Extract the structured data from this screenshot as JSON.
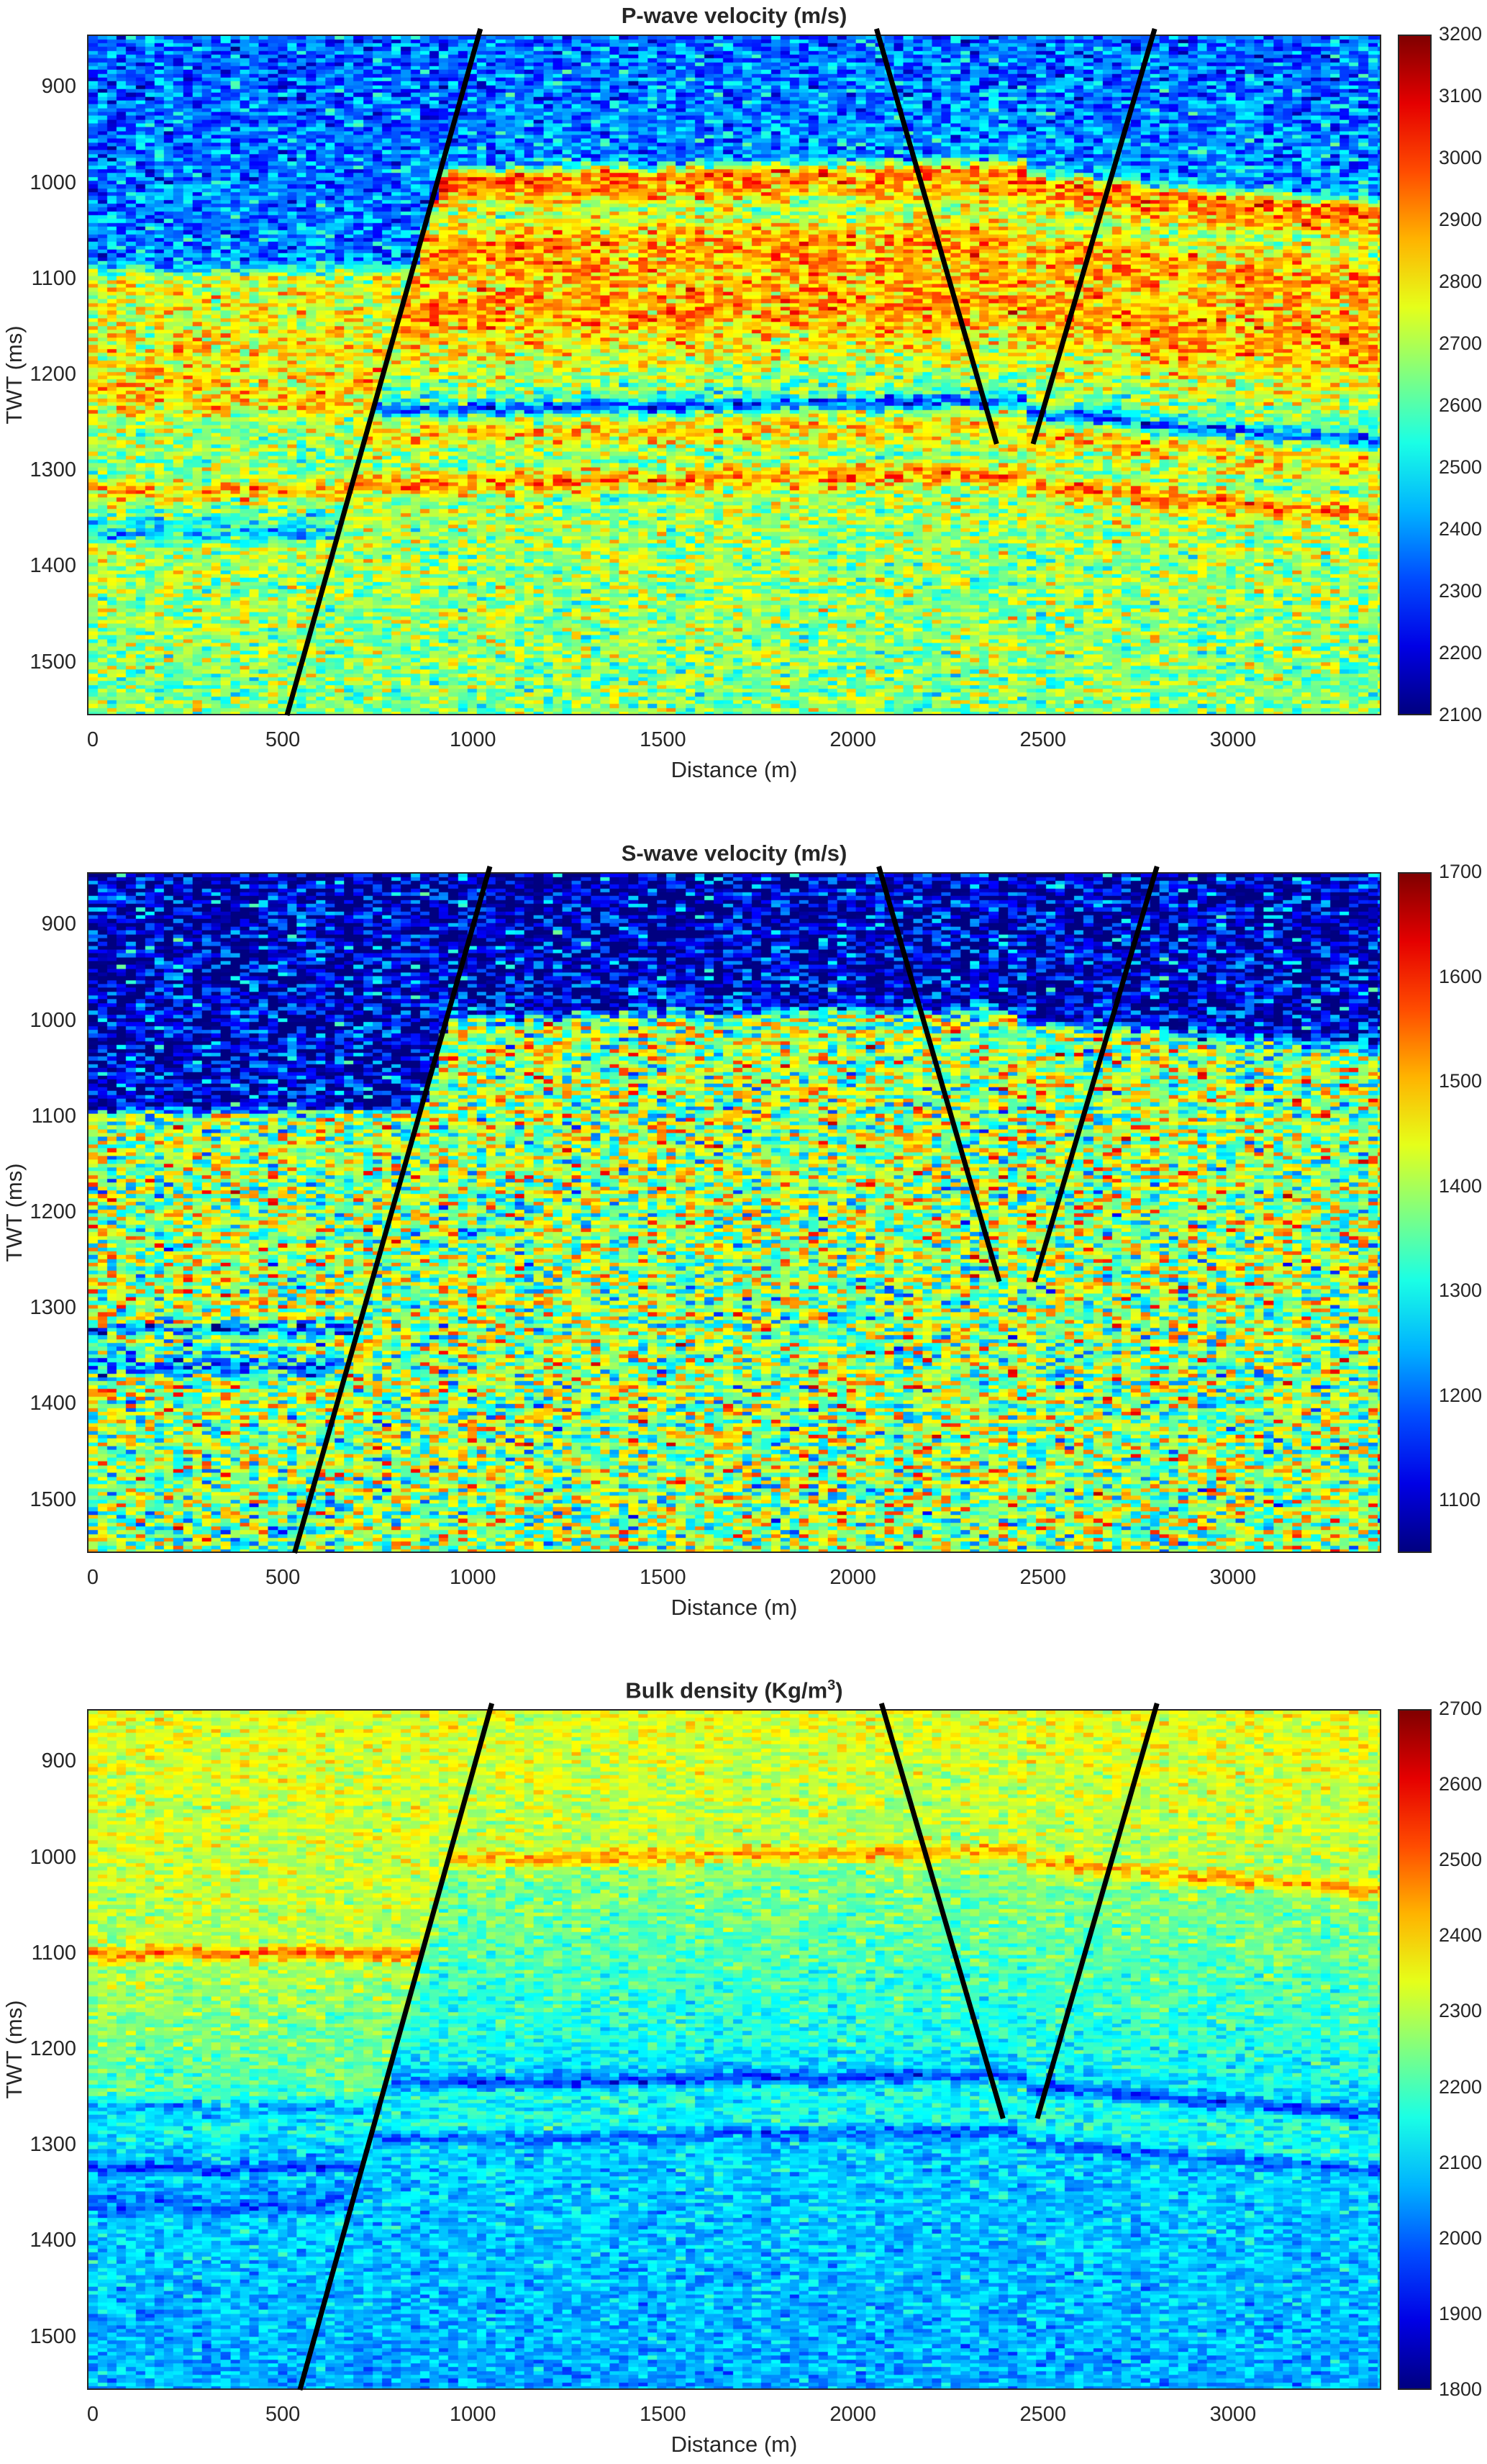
{
  "chart_data": [
    {
      "type": "heatmap",
      "title": "P-wave velocity (m/s)",
      "title_sup": "",
      "xlabel": "Distance (m)",
      "ylabel": "TWT (ms)",
      "xlim": [
        -15,
        3390
      ],
      "ylim": [
        845,
        1555
      ],
      "xticks": [
        0,
        500,
        1000,
        1500,
        2000,
        2500,
        3000
      ],
      "yticks": [
        900,
        1000,
        1100,
        1200,
        1300,
        1400,
        1500
      ],
      "clim": [
        2100,
        3200
      ],
      "colorbar_ticks": [
        2100,
        2200,
        2300,
        2400,
        2500,
        2600,
        2700,
        2800,
        2900,
        3000,
        3100,
        3200
      ],
      "colormap": "jet",
      "noise": 150,
      "seed": 11,
      "profile_left": [
        [
          845,
          2350
        ],
        [
          1080,
          2380
        ],
        [
          1100,
          2750
        ],
        [
          1200,
          2800
        ],
        [
          1230,
          2850
        ],
        [
          1250,
          2700
        ],
        [
          1310,
          2650
        ],
        [
          1320,
          2900
        ],
        [
          1340,
          2650
        ],
        [
          1368,
          2450
        ],
        [
          1380,
          2700
        ],
        [
          1555,
          2650
        ]
      ],
      "profile_right": [
        [
          845,
          2350
        ],
        [
          975,
          2400
        ],
        [
          990,
          2950
        ],
        [
          1005,
          2900
        ],
        [
          1030,
          2700
        ],
        [
          1060,
          2900
        ],
        [
          1100,
          2850
        ],
        [
          1130,
          2900
        ],
        [
          1200,
          2700
        ],
        [
          1224,
          2600
        ],
        [
          1232,
          2250
        ],
        [
          1242,
          2650
        ],
        [
          1255,
          2850
        ],
        [
          1290,
          2650
        ],
        [
          1310,
          2950
        ],
        [
          1325,
          2700
        ],
        [
          1555,
          2650
        ]
      ],
      "faults": [
        [
          [
            1020,
            845
          ],
          [
            511,
            1555
          ]
        ],
        [
          [
            2062,
            845
          ],
          [
            2378,
            1272
          ]
        ],
        [
          [
            2794,
            845
          ],
          [
            2474,
            1272
          ]
        ]
      ]
    },
    {
      "type": "heatmap",
      "title": "S-wave velocity (m/s)",
      "title_sup": "",
      "xlabel": "Distance (m)",
      "ylabel": "TWT (ms)",
      "xlim": [
        -15,
        3390
      ],
      "ylim": [
        845,
        1555
      ],
      "xticks": [
        0,
        500,
        1000,
        1500,
        2000,
        2500,
        3000
      ],
      "yticks": [
        900,
        1000,
        1100,
        1200,
        1300,
        1400,
        1500
      ],
      "clim": [
        1050,
        1700
      ],
      "colorbar_ticks": [
        1100,
        1200,
        1300,
        1400,
        1500,
        1600,
        1700
      ],
      "colormap": "jet",
      "noise": 150,
      "seed": 23,
      "profile_left": [
        [
          845,
          1090
        ],
        [
          1090,
          1110
        ],
        [
          1100,
          1400
        ],
        [
          1315,
          1400
        ],
        [
          1322,
          1120
        ],
        [
          1332,
          1400
        ],
        [
          1365,
          1220
        ],
        [
          1378,
          1400
        ],
        [
          1555,
          1380
        ]
      ],
      "profile_right": [
        [
          845,
          1090
        ],
        [
          985,
          1110
        ],
        [
          1000,
          1400
        ],
        [
          1555,
          1390
        ]
      ],
      "faults": [
        [
          [
            1045,
            845
          ],
          [
            531,
            1555
          ]
        ],
        [
          [
            2068,
            845
          ],
          [
            2385,
            1272
          ]
        ],
        [
          [
            2800,
            845
          ],
          [
            2478,
            1272
          ]
        ]
      ]
    },
    {
      "type": "heatmap",
      "title": "Bulk density (Kg/m",
      "title_sup": "3",
      "title_end": ")",
      "xlabel": "Distance (m)",
      "ylabel": "TWT (ms)",
      "xlim": [
        -15,
        3390
      ],
      "ylim": [
        845,
        1555
      ],
      "xticks": [
        0,
        500,
        1000,
        1500,
        2000,
        2500,
        3000
      ],
      "yticks": [
        900,
        1000,
        1100,
        1200,
        1300,
        1400,
        1500
      ],
      "clim": [
        1800,
        2700
      ],
      "colorbar_ticks": [
        1800,
        1900,
        2000,
        2100,
        2200,
        2300,
        2400,
        2500,
        2600,
        2700
      ],
      "colormap": "jet",
      "noise": 70,
      "seed": 37,
      "profile_left": [
        [
          845,
          2340
        ],
        [
          1090,
          2300
        ],
        [
          1100,
          2500
        ],
        [
          1112,
          2300
        ],
        [
          1250,
          2200
        ],
        [
          1262,
          2050
        ],
        [
          1278,
          2150
        ],
        [
          1318,
          2080
        ],
        [
          1325,
          1930
        ],
        [
          1335,
          2100
        ],
        [
          1368,
          2000
        ],
        [
          1380,
          2100
        ],
        [
          1555,
          2060
        ]
      ],
      "profile_right": [
        [
          845,
          2340
        ],
        [
          985,
          2300
        ],
        [
          998,
          2460
        ],
        [
          1010,
          2260
        ],
        [
          1200,
          2150
        ],
        [
          1222,
          2100
        ],
        [
          1232,
          1950
        ],
        [
          1242,
          2150
        ],
        [
          1280,
          2150
        ],
        [
          1290,
          1980
        ],
        [
          1300,
          2100
        ],
        [
          1555,
          2060
        ]
      ],
      "faults": [
        [
          [
            1050,
            845
          ],
          [
            545,
            1555
          ]
        ],
        [
          [
            2075,
            845
          ],
          [
            2395,
            1272
          ]
        ],
        [
          [
            2800,
            845
          ],
          [
            2485,
            1272
          ]
        ]
      ]
    }
  ]
}
